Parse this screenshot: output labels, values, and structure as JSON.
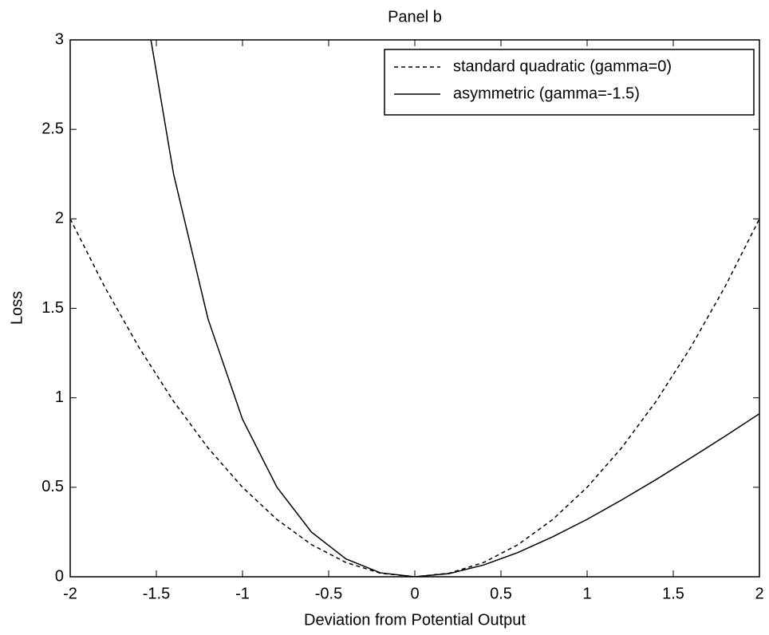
{
  "chart_data": {
    "type": "line",
    "title": "Panel b",
    "xlabel": "Deviation from Potential Output",
    "ylabel": "Loss",
    "x": [
      -2,
      -1.8,
      -1.6,
      -1.4,
      -1.2,
      -1,
      -0.8,
      -0.6,
      -0.4,
      -0.2,
      0,
      0.2,
      0.4,
      0.6,
      0.8,
      1,
      1.2,
      1.4,
      1.6,
      1.8,
      2
    ],
    "series": [
      {
        "name": "standard quadratic (gamma=0)",
        "color": "#000000",
        "dash": "dashed",
        "values": [
          2,
          1.62,
          1.28,
          0.98,
          0.72,
          0.5,
          0.32,
          0.18,
          0.08,
          0.02,
          0,
          0.02,
          0.08,
          0.18,
          0.32,
          0.5,
          0.72,
          0.98,
          1.28,
          1.62,
          2
        ]
      },
      {
        "name": "asymmetric (gamma=-1.5)",
        "color": "#000000",
        "dash": "solid",
        "values": [
          null,
          null,
          3.39,
          2.25,
          1.44,
          0.88,
          0.5,
          0.25,
          0.1,
          0.022,
          0,
          0.018,
          0.066,
          0.136,
          0.223,
          0.321,
          0.429,
          0.543,
          0.663,
          0.785,
          0.911
        ]
      }
    ],
    "xlim": [
      -2,
      2
    ],
    "xticks": [
      -2,
      -1.5,
      -1,
      -0.5,
      0,
      0.5,
      1,
      1.5,
      2
    ],
    "ylim": [
      0,
      3
    ],
    "yticks": [
      0,
      0.5,
      1,
      1.5,
      2,
      2.5,
      3
    ],
    "legend": "upper right"
  }
}
